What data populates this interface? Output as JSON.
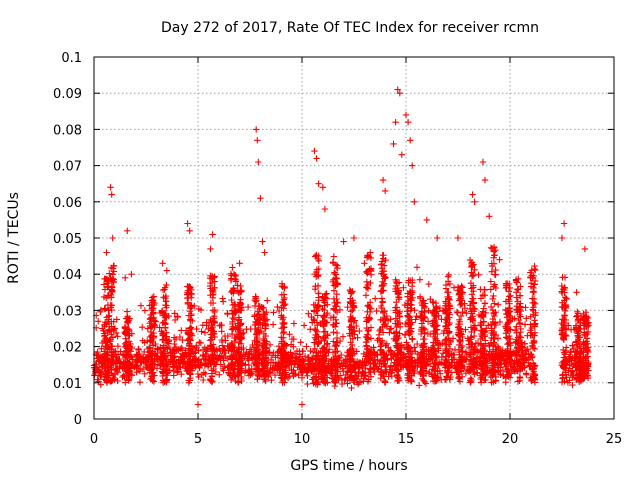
{
  "chart_data": {
    "type": "scatter",
    "title": "Day 272 of 2017, Rate Of TEC Index for receiver rcmn",
    "xlabel": "GPS time / hours",
    "ylabel": "ROTI / TECUs",
    "xlim": [
      0,
      25
    ],
    "ylim": [
      0,
      0.1
    ],
    "x_ticks": [
      0,
      5,
      10,
      15,
      20,
      25
    ],
    "x_tick_labels": [
      "0",
      "5",
      "10",
      "15",
      "20",
      "25"
    ],
    "y_ticks": [
      0,
      0.01,
      0.02,
      0.03,
      0.04,
      0.05,
      0.06,
      0.07,
      0.08,
      0.09,
      0.1
    ],
    "y_tick_labels": [
      "0",
      "0.01",
      "0.02",
      "0.03",
      "0.04",
      "0.05",
      "0.06",
      "0.07",
      "0.08",
      "0.09",
      "0.1"
    ],
    "grid": true,
    "marker": "+",
    "color": "#ff0000",
    "data_gaps_hours": [
      [
        21.2,
        22.5
      ]
    ],
    "series": [
      {
        "points": [
          [
            0.2,
            0.027
          ],
          [
            0.4,
            0.025
          ],
          [
            0.6,
            0.046
          ],
          [
            0.8,
            0.064
          ],
          [
            0.85,
            0.062
          ],
          [
            0.9,
            0.05
          ],
          [
            1.5,
            0.039
          ],
          [
            1.6,
            0.052
          ],
          [
            1.8,
            0.04
          ],
          [
            3.3,
            0.043
          ],
          [
            3.5,
            0.041
          ],
          [
            4.5,
            0.054
          ],
          [
            4.6,
            0.052
          ],
          [
            5.6,
            0.047
          ],
          [
            5.7,
            0.051
          ],
          [
            6.7,
            0.036
          ],
          [
            7.0,
            0.043
          ],
          [
            7.8,
            0.08
          ],
          [
            7.85,
            0.077
          ],
          [
            7.9,
            0.071
          ],
          [
            8.0,
            0.061
          ],
          [
            8.1,
            0.049
          ],
          [
            8.2,
            0.046
          ],
          [
            10.6,
            0.074
          ],
          [
            10.7,
            0.072
          ],
          [
            10.8,
            0.065
          ],
          [
            11.0,
            0.064
          ],
          [
            11.1,
            0.058
          ],
          [
            12.0,
            0.049
          ],
          [
            12.5,
            0.05
          ],
          [
            13.0,
            0.043
          ],
          [
            13.9,
            0.066
          ],
          [
            14.0,
            0.063
          ],
          [
            14.6,
            0.091
          ],
          [
            14.7,
            0.09
          ],
          [
            14.5,
            0.082
          ],
          [
            14.4,
            0.076
          ],
          [
            15.0,
            0.084
          ],
          [
            15.1,
            0.082
          ],
          [
            15.2,
            0.077
          ],
          [
            15.3,
            0.07
          ],
          [
            15.4,
            0.06
          ],
          [
            14.8,
            0.073
          ],
          [
            16.0,
            0.055
          ],
          [
            16.5,
            0.05
          ],
          [
            17.5,
            0.05
          ],
          [
            18.2,
            0.062
          ],
          [
            18.3,
            0.06
          ],
          [
            18.7,
            0.071
          ],
          [
            18.8,
            0.066
          ],
          [
            19.0,
            0.056
          ],
          [
            19.5,
            0.044
          ],
          [
            20.3,
            0.035
          ],
          [
            21.1,
            0.039
          ],
          [
            22.5,
            0.05
          ],
          [
            22.6,
            0.054
          ],
          [
            23.2,
            0.035
          ],
          [
            23.6,
            0.047
          ],
          [
            10.0,
            0.004
          ],
          [
            5.0,
            0.004
          ]
        ]
      }
    ]
  }
}
